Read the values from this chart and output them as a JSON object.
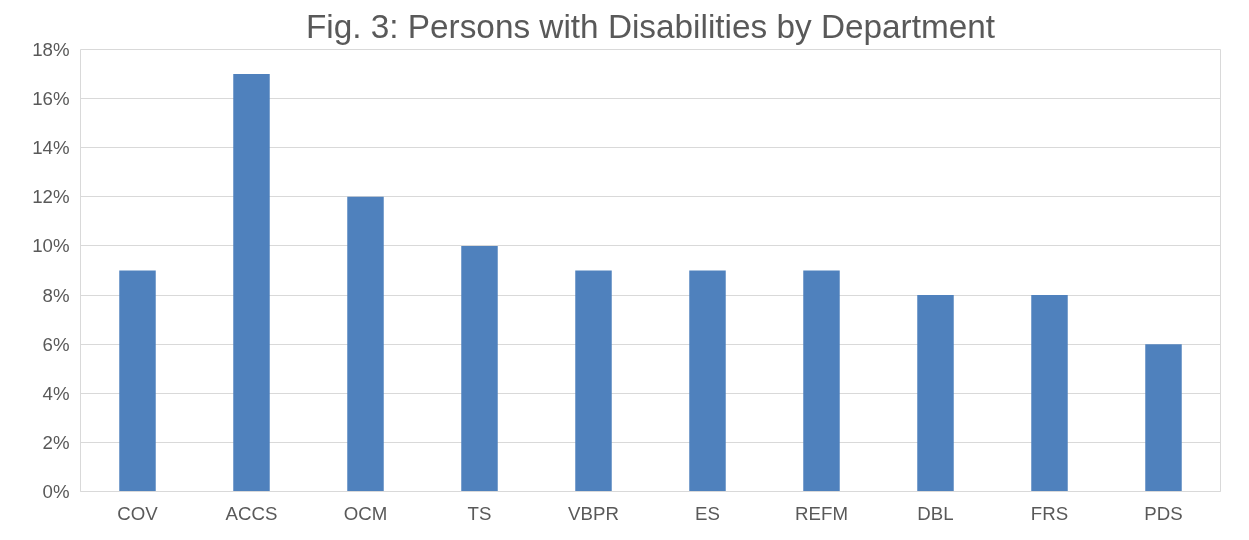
{
  "chart_data": {
    "type": "bar",
    "title": "Fig. 3: Persons with Disabilities by Department",
    "categories": [
      "COV",
      "ACCS",
      "OCM",
      "TS",
      "VBPR",
      "ES",
      "REFM",
      "DBL",
      "FRS",
      "PDS"
    ],
    "values": [
      9,
      17,
      12,
      10,
      9,
      9,
      9,
      8,
      8,
      6
    ],
    "color": "#4f81bd",
    "ylim": [
      0,
      18
    ],
    "yticks": [
      {
        "value": 0,
        "label": "0%"
      },
      {
        "value": 2,
        "label": "2%"
      },
      {
        "value": 4,
        "label": "4%"
      },
      {
        "value": 6,
        "label": "6%"
      },
      {
        "value": 8,
        "label": "8%"
      },
      {
        "value": 10,
        "label": "10%"
      },
      {
        "value": 12,
        "label": "12%"
      },
      {
        "value": 14,
        "label": "14%"
      },
      {
        "value": 16,
        "label": "16%"
      },
      {
        "value": 18,
        "label": "18%"
      }
    ],
    "grid": "y"
  }
}
